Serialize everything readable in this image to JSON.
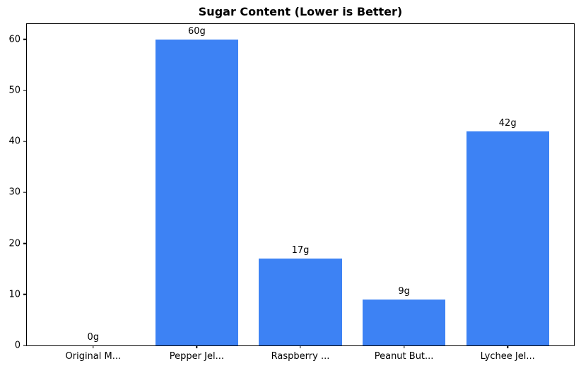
{
  "chart_data": {
    "type": "bar",
    "title": "Sugar Content (Lower is Better)",
    "categories": [
      "Original M...",
      "Pepper Jel...",
      "Raspberry ...",
      "Peanut But...",
      "Lychee Jel..."
    ],
    "values": [
      0,
      60,
      17,
      9,
      42
    ],
    "data_labels": [
      "0g",
      "60g",
      "17g",
      "9g",
      "42g"
    ],
    "xlabel": "",
    "ylabel": "",
    "ylim": [
      0,
      63
    ],
    "yticks": [
      0,
      10,
      20,
      30,
      40,
      50,
      60
    ],
    "bar_color": "#3d82f4",
    "bar_width_fraction": 0.8,
    "grid": false,
    "legend": null,
    "axis_color": "#000000",
    "background_color": "#ffffff"
  }
}
